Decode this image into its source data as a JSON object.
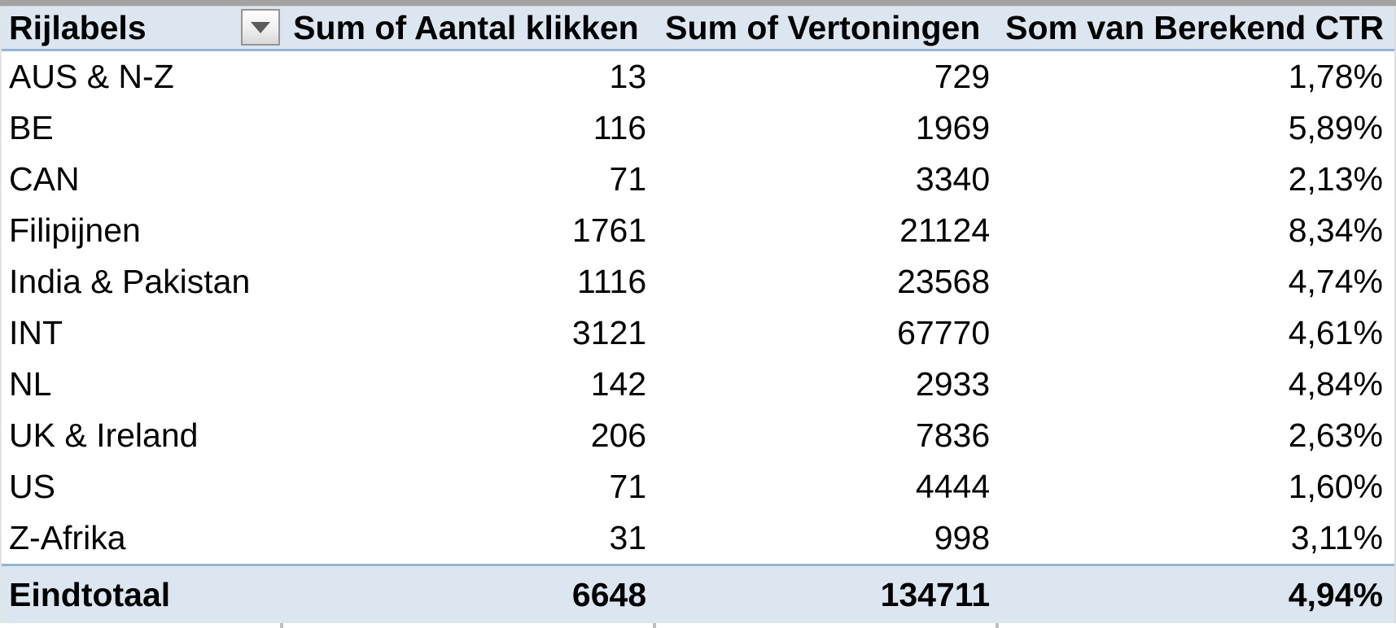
{
  "app": {
    "description_label": "Excel pivot table",
    "colors": {
      "header_background": "#DCE6F1",
      "total_background": "#DCE6F1",
      "separator_blue": "#95B3D7",
      "top_gridline_gray": "#A2A2A2",
      "text": "#000000"
    }
  },
  "table": {
    "columns": [
      {
        "label": "Rijlabels"
      },
      {
        "label": "Sum of Aantal klikken"
      },
      {
        "label": "Sum of Vertoningen"
      },
      {
        "label": "Som van Berekend CTR"
      }
    ],
    "filter": {
      "column": "Rijlabels",
      "icon": "chevron-down"
    },
    "rows": [
      {
        "label": "AUS & N-Z",
        "klikken": "13",
        "vertoningen": "729",
        "ctr": "1,78%"
      },
      {
        "label": "BE",
        "klikken": "116",
        "vertoningen": "1969",
        "ctr": "5,89%"
      },
      {
        "label": "CAN",
        "klikken": "71",
        "vertoningen": "3340",
        "ctr": "2,13%"
      },
      {
        "label": "Filipijnen",
        "klikken": "1761",
        "vertoningen": "21124",
        "ctr": "8,34%"
      },
      {
        "label": "India & Pakistan",
        "klikken": "1116",
        "vertoningen": "23568",
        "ctr": "4,74%"
      },
      {
        "label": "INT",
        "klikken": "3121",
        "vertoningen": "67770",
        "ctr": "4,61%"
      },
      {
        "label": "NL",
        "klikken": "142",
        "vertoningen": "2933",
        "ctr": "4,84%"
      },
      {
        "label": "UK & Ireland",
        "klikken": "206",
        "vertoningen": "7836",
        "ctr": "2,63%"
      },
      {
        "label": "US",
        "klikken": "71",
        "vertoningen": "4444",
        "ctr": "1,60%"
      },
      {
        "label": "Z-Afrika",
        "klikken": "31",
        "vertoningen": "998",
        "ctr": "3,11%"
      }
    ],
    "total": {
      "label": "Eindtotaal",
      "klikken": "6648",
      "vertoningen": "134711",
      "ctr": "4,94%"
    }
  }
}
